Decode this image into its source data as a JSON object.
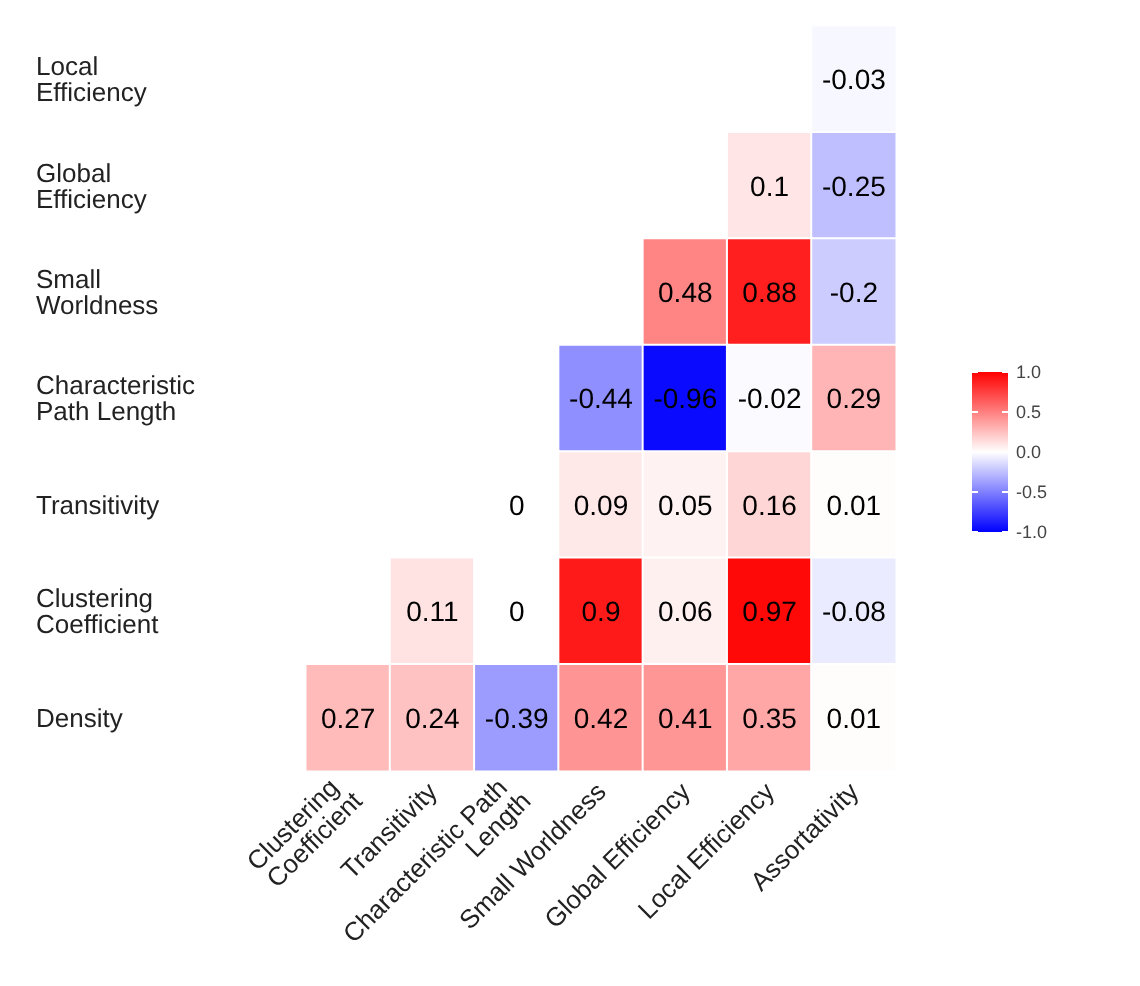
{
  "chart_data": {
    "type": "heatmap",
    "categories": [
      "Clustering Coefficient",
      "Transitivity",
      "Characteristic Path Length",
      "Small Worldness",
      "Global Efficiency",
      "Local Efficiency",
      "Assortativity"
    ],
    "y_categories": [
      "Local Efficiency",
      "Global Efficiency",
      "Small Worldness",
      "Characteristic Path Length",
      "Transitivity",
      "Clustering Coefficient",
      "Density"
    ],
    "cells": [
      [
        null,
        null,
        null,
        null,
        null,
        null,
        -0.03
      ],
      [
        null,
        null,
        null,
        null,
        null,
        0.1,
        -0.25
      ],
      [
        null,
        null,
        null,
        null,
        0.48,
        0.88,
        -0.2
      ],
      [
        null,
        null,
        null,
        -0.44,
        -0.96,
        -0.02,
        0.29
      ],
      [
        null,
        null,
        0,
        0.09,
        0.05,
        0.16,
        0.01
      ],
      [
        null,
        0.11,
        0,
        0.9,
        0.06,
        0.97,
        -0.08
      ],
      [
        0.27,
        0.24,
        -0.39,
        0.42,
        0.41,
        0.35,
        0.01
      ]
    ],
    "clim": [
      -1,
      1
    ],
    "cticks": [
      {
        "value": -1,
        "label": "-1.0"
      },
      {
        "value": -0.5,
        "label": "-0.5"
      },
      {
        "value": 0,
        "label": "0.0"
      },
      {
        "value": 0.5,
        "label": "0.5"
      },
      {
        "value": 1,
        "label": "1.0"
      }
    ],
    "data_labels": true,
    "grid": false
  }
}
